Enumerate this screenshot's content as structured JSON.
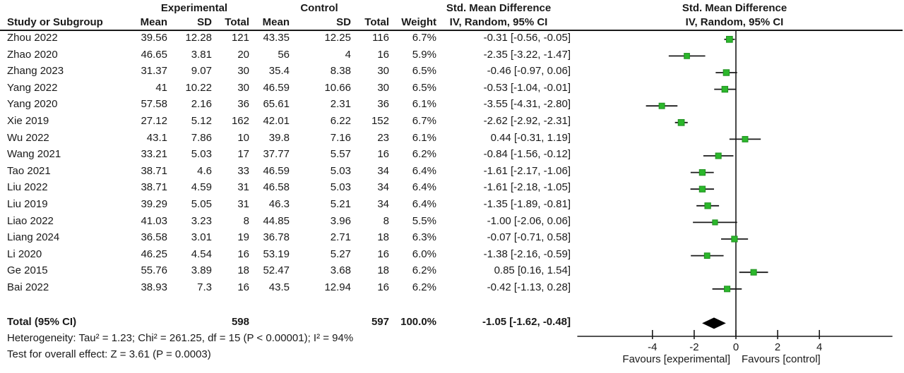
{
  "page": {
    "background": "#ffffff",
    "text_color": "#1a1a1a",
    "rule_color": "#1a1a1a",
    "marker_color": "#2cb72c",
    "marker_edge_color": "#1f8f1f",
    "line_color": "#1a1a1a",
    "diamond_color": "#000000"
  },
  "table": {
    "group_headers": {
      "experimental": "Experimental",
      "control": "Control",
      "smd_left": "Std. Mean Difference",
      "smd_right": "Std. Mean Difference"
    },
    "col_headers": {
      "study": "Study or Subgroup",
      "exp_mean": "Mean",
      "exp_sd": "SD",
      "exp_total": "Total",
      "ctl_mean": "Mean",
      "ctl_sd": "SD",
      "ctl_total": "Total",
      "weight": "Weight",
      "ci_left": "IV, Random, 95% CI",
      "ci_right": "IV, Random, 95% CI"
    },
    "rows": [
      {
        "study": "Zhou 2022",
        "exp_mean": "39.56",
        "exp_sd": "12.28",
        "exp_total": "121",
        "ctl_mean": "43.35",
        "ctl_sd": "12.25",
        "ctl_total": "116",
        "weight": "6.7%",
        "ci": "-0.31 [-0.56, -0.05]"
      },
      {
        "study": "Zhao 2020",
        "exp_mean": "46.65",
        "exp_sd": "3.81",
        "exp_total": "20",
        "ctl_mean": "56",
        "ctl_sd": "4",
        "ctl_total": "16",
        "weight": "5.9%",
        "ci": "-2.35 [-3.22, -1.47]"
      },
      {
        "study": "Zhang 2023",
        "exp_mean": "31.37",
        "exp_sd": "9.07",
        "exp_total": "30",
        "ctl_mean": "35.4",
        "ctl_sd": "8.38",
        "ctl_total": "30",
        "weight": "6.5%",
        "ci": "-0.46 [-0.97, 0.06]"
      },
      {
        "study": "Yang 2022",
        "exp_mean": "41",
        "exp_sd": "10.22",
        "exp_total": "30",
        "ctl_mean": "46.59",
        "ctl_sd": "10.66",
        "ctl_total": "30",
        "weight": "6.5%",
        "ci": "-0.53 [-1.04, -0.01]"
      },
      {
        "study": "Yang 2020",
        "exp_mean": "57.58",
        "exp_sd": "2.16",
        "exp_total": "36",
        "ctl_mean": "65.61",
        "ctl_sd": "2.31",
        "ctl_total": "36",
        "weight": "6.1%",
        "ci": "-3.55 [-4.31, -2.80]"
      },
      {
        "study": "Xie 2019",
        "exp_mean": "27.12",
        "exp_sd": "5.12",
        "exp_total": "162",
        "ctl_mean": "42.01",
        "ctl_sd": "6.22",
        "ctl_total": "152",
        "weight": "6.7%",
        "ci": "-2.62 [-2.92, -2.31]"
      },
      {
        "study": "Wu 2022",
        "exp_mean": "43.1",
        "exp_sd": "7.86",
        "exp_total": "10",
        "ctl_mean": "39.8",
        "ctl_sd": "7.16",
        "ctl_total": "23",
        "weight": "6.1%",
        "ci": "0.44 [-0.31, 1.19]"
      },
      {
        "study": "Wang 2021",
        "exp_mean": "33.21",
        "exp_sd": "5.03",
        "exp_total": "17",
        "ctl_mean": "37.77",
        "ctl_sd": "5.57",
        "ctl_total": "16",
        "weight": "6.2%",
        "ci": "-0.84 [-1.56, -0.12]"
      },
      {
        "study": "Tao 2021",
        "exp_mean": "38.71",
        "exp_sd": "4.6",
        "exp_total": "33",
        "ctl_mean": "46.59",
        "ctl_sd": "5.03",
        "ctl_total": "34",
        "weight": "6.4%",
        "ci": "-1.61 [-2.17, -1.06]"
      },
      {
        "study": "Liu 2022",
        "exp_mean": "38.71",
        "exp_sd": "4.59",
        "exp_total": "31",
        "ctl_mean": "46.58",
        "ctl_sd": "5.03",
        "ctl_total": "34",
        "weight": "6.4%",
        "ci": "-1.61 [-2.18, -1.05]"
      },
      {
        "study": "Liu 2019",
        "exp_mean": "39.29",
        "exp_sd": "5.05",
        "exp_total": "31",
        "ctl_mean": "46.3",
        "ctl_sd": "5.21",
        "ctl_total": "34",
        "weight": "6.4%",
        "ci": "-1.35 [-1.89, -0.81]"
      },
      {
        "study": "Liao 2022",
        "exp_mean": "41.03",
        "exp_sd": "3.23",
        "exp_total": "8",
        "ctl_mean": "44.85",
        "ctl_sd": "3.96",
        "ctl_total": "8",
        "weight": "5.5%",
        "ci": "-1.00 [-2.06, 0.06]"
      },
      {
        "study": "Liang 2024",
        "exp_mean": "36.58",
        "exp_sd": "3.01",
        "exp_total": "19",
        "ctl_mean": "36.78",
        "ctl_sd": "2.71",
        "ctl_total": "18",
        "weight": "6.3%",
        "ci": "-0.07 [-0.71, 0.58]"
      },
      {
        "study": "Li 2020",
        "exp_mean": "46.25",
        "exp_sd": "4.54",
        "exp_total": "16",
        "ctl_mean": "53.19",
        "ctl_sd": "5.27",
        "ctl_total": "16",
        "weight": "6.0%",
        "ci": "-1.38 [-2.16, -0.59]"
      },
      {
        "study": "Ge 2015",
        "exp_mean": "55.76",
        "exp_sd": "3.89",
        "exp_total": "18",
        "ctl_mean": "52.47",
        "ctl_sd": "3.68",
        "ctl_total": "18",
        "weight": "6.2%",
        "ci": "0.85 [0.16, 1.54]"
      },
      {
        "study": "Bai 2022",
        "exp_mean": "38.93",
        "exp_sd": "7.3",
        "exp_total": "16",
        "ctl_mean": "43.5",
        "ctl_sd": "12.94",
        "ctl_total": "16",
        "weight": "6.2%",
        "ci": "-0.42 [-1.13, 0.28]"
      }
    ],
    "total_row": {
      "label": "Total (95% CI)",
      "exp_total": "598",
      "ctl_total": "597",
      "weight": "100.0%",
      "ci": "-1.05 [-1.62, -0.48]"
    },
    "footer": {
      "heterogeneity": "Heterogeneity: Tau² = 1.23; Chi² = 261.25, df = 15 (P < 0.00001); I² = 94%",
      "overall_effect": "Test for overall effect: Z = 3.61 (P = 0.0003)"
    }
  },
  "chart_data": {
    "type": "scatter",
    "subtype": "forest_plot",
    "title": "Std. Mean Difference",
    "method_label": "IV, Random, 95% CI",
    "x_ticks": [
      -4,
      -2,
      0,
      2,
      4
    ],
    "x_tick_labels": [
      "-4",
      "-2",
      "0",
      "2",
      "4"
    ],
    "xlim": [
      -7.6,
      7.5
    ],
    "zero_line_x": 0,
    "favours_left": "Favours [experimental]",
    "favours_right": "Favours [control]",
    "studies": [
      {
        "name": "Zhou 2022",
        "est": -0.31,
        "lo": -0.56,
        "hi": -0.05,
        "weight_pct": 6.7
      },
      {
        "name": "Zhao 2020",
        "est": -2.35,
        "lo": -3.22,
        "hi": -1.47,
        "weight_pct": 5.9
      },
      {
        "name": "Zhang 2023",
        "est": -0.46,
        "lo": -0.97,
        "hi": 0.06,
        "weight_pct": 6.5
      },
      {
        "name": "Yang 2022",
        "est": -0.53,
        "lo": -1.04,
        "hi": -0.01,
        "weight_pct": 6.5
      },
      {
        "name": "Yang 2020",
        "est": -3.55,
        "lo": -4.31,
        "hi": -2.8,
        "weight_pct": 6.1
      },
      {
        "name": "Xie 2019",
        "est": -2.62,
        "lo": -2.92,
        "hi": -2.31,
        "weight_pct": 6.7
      },
      {
        "name": "Wu 2022",
        "est": 0.44,
        "lo": -0.31,
        "hi": 1.19,
        "weight_pct": 6.1
      },
      {
        "name": "Wang 2021",
        "est": -0.84,
        "lo": -1.56,
        "hi": -0.12,
        "weight_pct": 6.2
      },
      {
        "name": "Tao 2021",
        "est": -1.61,
        "lo": -2.17,
        "hi": -1.06,
        "weight_pct": 6.4
      },
      {
        "name": "Liu 2022",
        "est": -1.61,
        "lo": -2.18,
        "hi": -1.05,
        "weight_pct": 6.4
      },
      {
        "name": "Liu 2019",
        "est": -1.35,
        "lo": -1.89,
        "hi": -0.81,
        "weight_pct": 6.4
      },
      {
        "name": "Liao 2022",
        "est": -1.0,
        "lo": -2.06,
        "hi": 0.06,
        "weight_pct": 5.5
      },
      {
        "name": "Liang 2024",
        "est": -0.07,
        "lo": -0.71,
        "hi": 0.58,
        "weight_pct": 6.3
      },
      {
        "name": "Li 2020",
        "est": -1.38,
        "lo": -2.16,
        "hi": -0.59,
        "weight_pct": 6.0
      },
      {
        "name": "Ge 2015",
        "est": 0.85,
        "lo": 0.16,
        "hi": 1.54,
        "weight_pct": 6.2
      },
      {
        "name": "Bai 2022",
        "est": -0.42,
        "lo": -1.13,
        "hi": 0.28,
        "weight_pct": 6.2
      }
    ],
    "total": {
      "name": "Total (95% CI)",
      "est": -1.05,
      "lo": -1.62,
      "hi": -0.48,
      "weight_pct": 100.0
    }
  }
}
